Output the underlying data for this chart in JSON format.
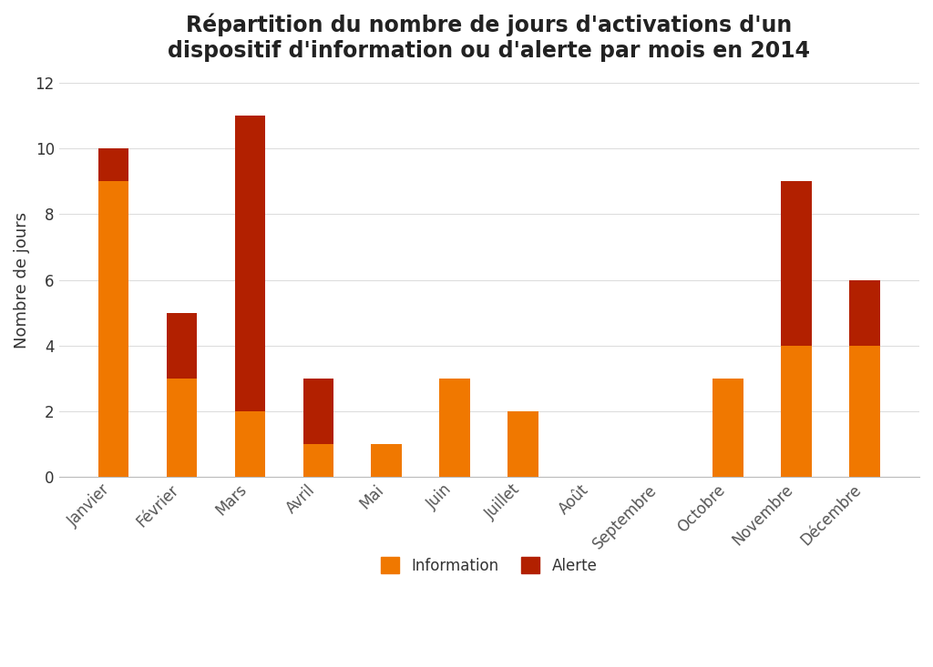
{
  "title": "Répartition du nombre de jours d'activations d'un\ndispositif d'information ou d'alerte par mois en 2014",
  "ylabel": "Nombre de jours",
  "categories": [
    "Janvier",
    "Février",
    "Mars",
    "Avril",
    "Mai",
    "Juin",
    "Juillet",
    "Août",
    "Septembre",
    "Octobre",
    "Novembre",
    "Décembre"
  ],
  "information": [
    9,
    3,
    2,
    1,
    1,
    3,
    2,
    0,
    0,
    3,
    4,
    4
  ],
  "alerte": [
    1,
    2,
    9,
    2,
    0,
    0,
    0,
    0,
    0,
    0,
    5,
    2
  ],
  "color_information": "#F07800",
  "color_alerte": "#B22000",
  "ylim": [
    0,
    12
  ],
  "yticks": [
    0,
    2,
    4,
    6,
    8,
    10,
    12
  ],
  "background_color": "#FFFFFF",
  "title_fontsize": 17,
  "label_fontsize": 13,
  "tick_fontsize": 12,
  "legend_fontsize": 12
}
